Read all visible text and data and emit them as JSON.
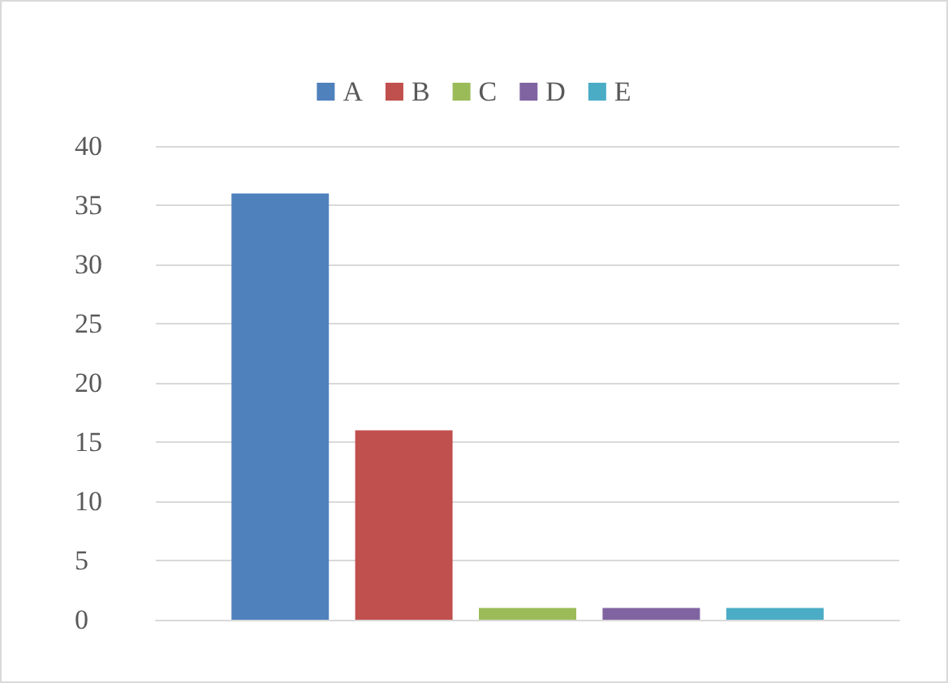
{
  "chart_data": {
    "type": "bar",
    "categories": [
      null
    ],
    "series": [
      {
        "name": "A",
        "color": "#4f81bd",
        "values": [
          36
        ]
      },
      {
        "name": "B",
        "color": "#c0504d",
        "values": [
          16
        ]
      },
      {
        "name": "C",
        "color": "#9bbb59",
        "values": [
          1
        ]
      },
      {
        "name": "D",
        "color": "#8064a2",
        "values": [
          1
        ]
      },
      {
        "name": "E",
        "color": "#4bacc6",
        "values": [
          1
        ]
      }
    ],
    "ylim": [
      0,
      40
    ],
    "yticks": [
      0,
      5,
      10,
      15,
      20,
      25,
      30,
      35,
      40
    ],
    "grid": "y",
    "legend": "top"
  }
}
